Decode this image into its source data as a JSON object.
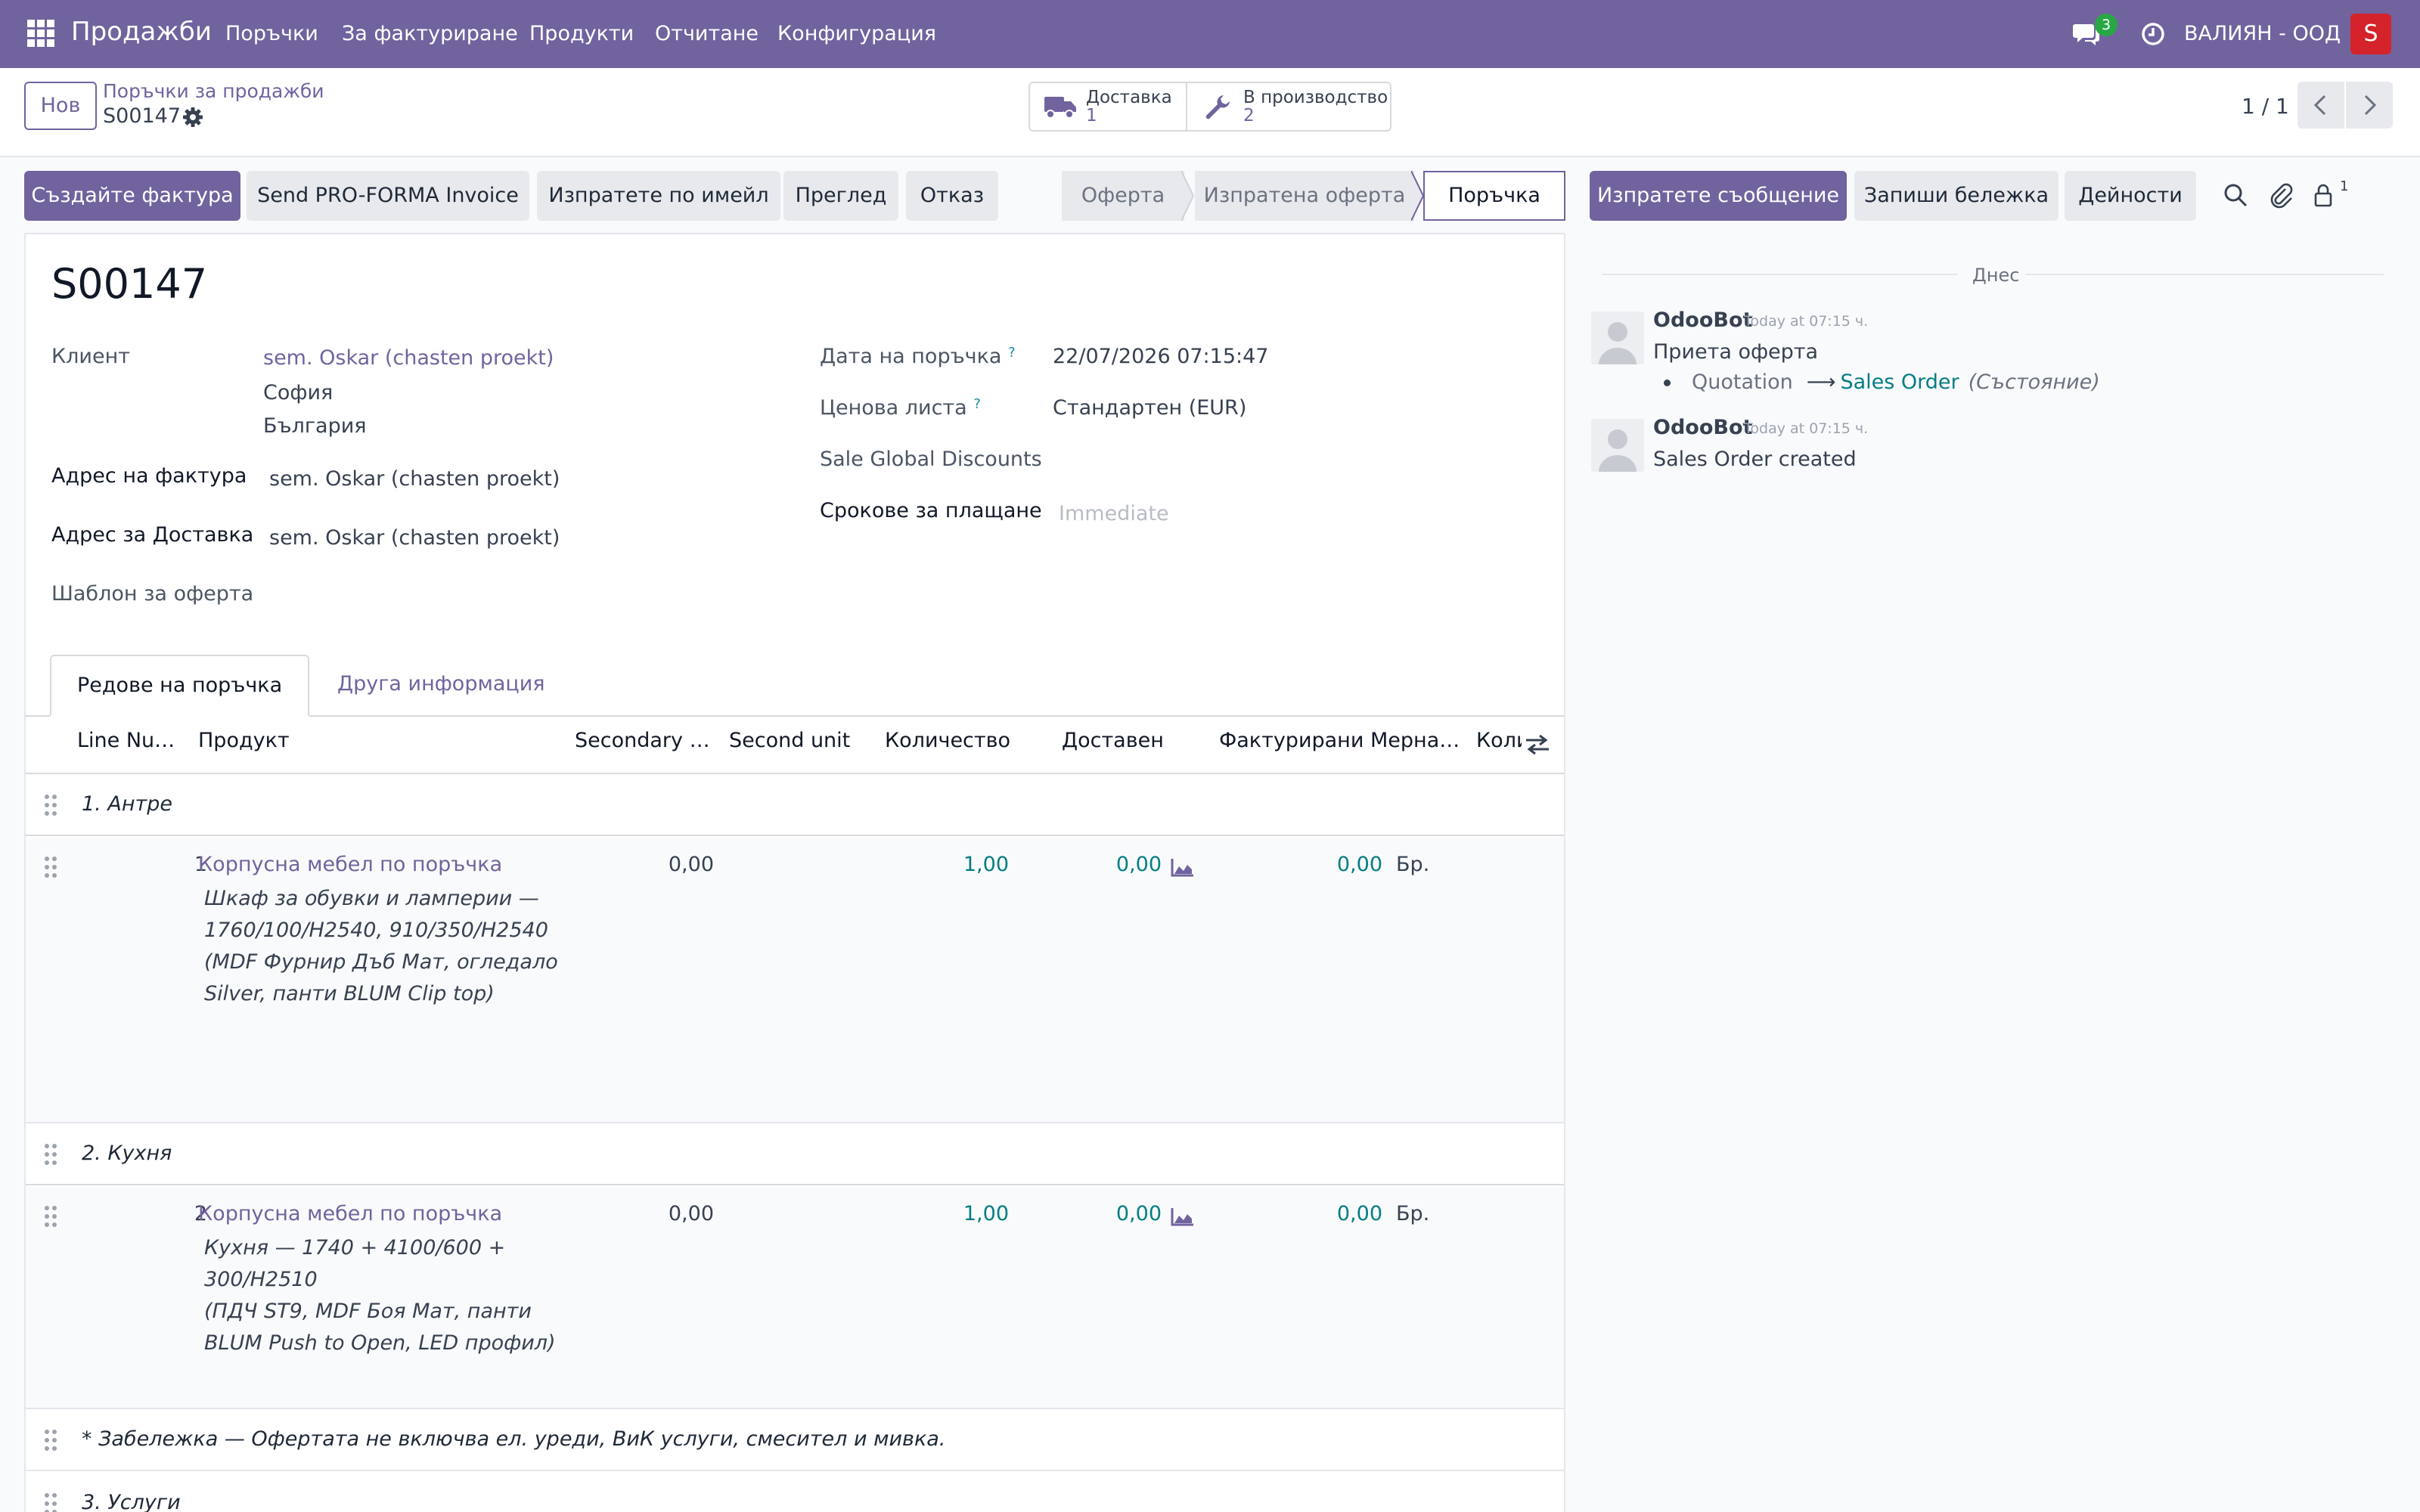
{
  "navbar": {
    "brand": "Продажби",
    "menu": [
      "Поръчки",
      "За фактуриране",
      "Продукти",
      "Отчитане",
      "Конфигурация"
    ],
    "message_count": "3",
    "company": "ВАЛИЯН - ООД",
    "user_initial": "S",
    "colors": {
      "bar": "#71639e",
      "badge": "#28a745",
      "avatar": "#d4232a"
    }
  },
  "control": {
    "new_label": "Нов",
    "breadcrumb_parent": "Поръчки за продажби",
    "breadcrumb_current": "S00147",
    "smart_buttons": [
      {
        "label": "Доставка",
        "count": "1",
        "icon": "truck-icon"
      },
      {
        "label": "В производство",
        "count": "2",
        "icon": "wrench-icon"
      }
    ],
    "pager": "1 / 1"
  },
  "actions": {
    "buttons": [
      "Създайте фактура",
      "Send PRO-FORMA Invoice",
      "Изпратете по имейл",
      "Преглед",
      "Отказ"
    ],
    "stages": [
      "Оферта",
      "Изпратена оферта",
      "Поръчка"
    ],
    "active_stage": "Поръчка"
  },
  "form": {
    "title": "S00147",
    "customer_label": "Клиент",
    "customer_name": "sem. Oskar (chasten proekt)",
    "customer_city": "София",
    "customer_country": "България",
    "invoice_address_label": "Адрес на фактура",
    "invoice_address": "sem. Oskar (chasten proekt)",
    "delivery_address_label": "Адрес за Доставка",
    "delivery_address": "sem. Oskar (chasten proekt)",
    "quote_template_label": "Шаблон за оферта",
    "order_date_label": "Дата на поръчка",
    "order_date": "22/07/2026 07:15:47",
    "pricelist_label": "Ценова листа",
    "pricelist": "Стандартен (EUR)",
    "global_discounts_label": "Sale Global Discounts",
    "payment_terms_label": "Срокове за плащане",
    "payment_terms_placeholder": "Immediate",
    "help_mark": "?"
  },
  "tabs": [
    "Редове на поръчка",
    "Друга информация"
  ],
  "order_lines": {
    "columns": [
      "Line Nu…",
      "Продукт",
      "Secondary …",
      "Second unit",
      "Количество",
      "Доставен",
      "Фактурирани",
      "Мерна…",
      "Коли"
    ],
    "sections": [
      "1. Антре",
      "2. Кухня",
      "3. Услуги"
    ],
    "lines": [
      {
        "line_no": "1",
        "product": "Корпусна мебел по поръчка",
        "description": [
          "Шкаф за обувки и ламперии —",
          "1760/100/H2540, 910/350/H2540",
          "(MDF Фурнир Дъб Мат, огледало",
          "Silver, панти BLUM Clip top)"
        ],
        "secondary_qty": "0,00",
        "quantity": "1,00",
        "delivered": "0,00",
        "invoiced": "0,00",
        "uom": "Бр."
      },
      {
        "line_no": "2",
        "product": "Корпусна мебел по поръчка",
        "description": [
          "Кухня — 1740 + 4100/600 +",
          "300/H2510",
          "(ПДЧ ST9, MDF Боя Мат, панти",
          "BLUM Push to Open, LED профил)"
        ],
        "secondary_qty": "0,00",
        "quantity": "1,00",
        "delivered": "0,00",
        "invoiced": "0,00",
        "uom": "Бр."
      }
    ],
    "note": "* Забележка — Офертата не включва ел. уреди, ВиК услуги, смесител и мивка."
  },
  "chatter": {
    "buttons": [
      "Изпратете съобщение",
      "Запиши бележка",
      "Дейности"
    ],
    "follower_count": "1",
    "date_separator": "Днес",
    "messages": [
      {
        "author": "OdooBot",
        "date": "Today at 07:15 ч.",
        "body": "Приета оферта",
        "tracking_old": "Quotation",
        "tracking_arrow": "⟶",
        "tracking_new": "Sales Order",
        "tracking_field": "(Състояние)"
      },
      {
        "author": "OdooBot",
        "date": "Today at 07:15 ч.",
        "body": "Sales Order created"
      }
    ]
  }
}
